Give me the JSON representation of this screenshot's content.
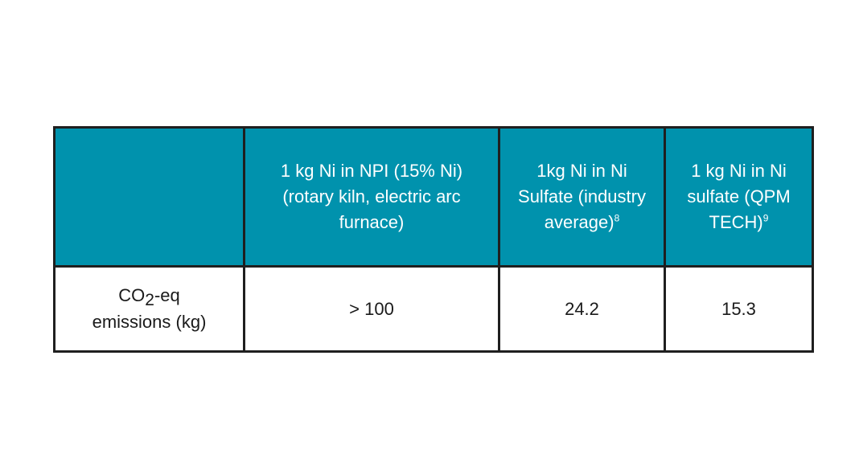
{
  "table": {
    "header": {
      "empty": "",
      "col1": "1 kg Ni in NPI (15% Ni) (rotary kiln, electric arc furnace)",
      "col2": {
        "text": "1kg Ni in Ni Sulfate (industry average)",
        "footnote": "8"
      },
      "col3": {
        "text": "1 kg Ni in Ni sulfate (QPM TECH)",
        "footnote": "9"
      }
    },
    "rows": [
      {
        "label": {
          "prefix": "CO",
          "subscript": "2",
          "suffix": "-eq",
          "line2": "emissions (kg)"
        },
        "values": [
          "> 100",
          "24.2",
          "15.3"
        ]
      }
    ]
  },
  "colors": {
    "header_bg": "#0092ad",
    "header_text": "#ffffff",
    "border": "#1f1f1f"
  }
}
